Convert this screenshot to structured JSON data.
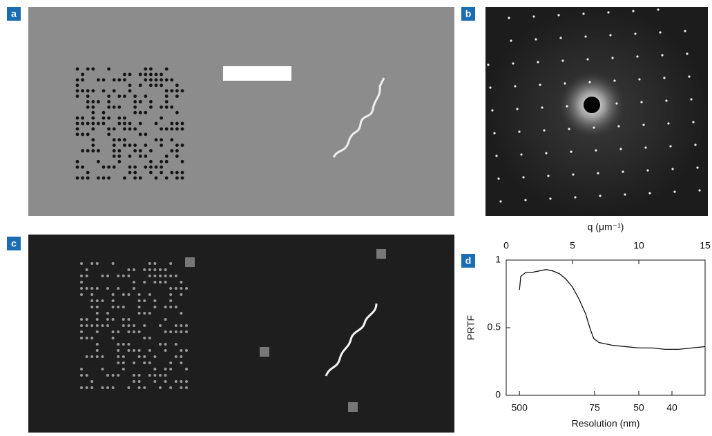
{
  "panels": {
    "a": {
      "label": "a"
    },
    "b": {
      "label": "b"
    },
    "c": {
      "label": "c"
    },
    "d": {
      "label": "d"
    }
  },
  "chart_data": {
    "type": "line",
    "x_label": "q (μm⁻¹)",
    "y_label": "PRTF",
    "x2_label": "Resolution (nm)",
    "xlim": [
      0,
      15
    ],
    "xticks": [
      0,
      5,
      10,
      15
    ],
    "x2ticks": [
      {
        "value": 1,
        "label": "500"
      },
      {
        "value": 6.667,
        "label": "75"
      },
      {
        "value": 10,
        "label": "50"
      },
      {
        "value": 12.5,
        "label": "40"
      }
    ],
    "ylim": [
      0,
      1
    ],
    "yticks": [
      0,
      0.5,
      1
    ],
    "color": "#111",
    "x": [
      1.0,
      1.1,
      1.5,
      2,
      2.5,
      3,
      3.5,
      4,
      4.5,
      5,
      5.5,
      6,
      6.3,
      6.6,
      7,
      7.5,
      8,
      9,
      10,
      11,
      12,
      13,
      14,
      15
    ],
    "values": [
      0.78,
      0.88,
      0.91,
      0.91,
      0.92,
      0.93,
      0.92,
      0.9,
      0.86,
      0.8,
      0.71,
      0.6,
      0.5,
      0.42,
      0.39,
      0.38,
      0.37,
      0.36,
      0.35,
      0.35,
      0.34,
      0.34,
      0.35,
      0.36
    ]
  }
}
